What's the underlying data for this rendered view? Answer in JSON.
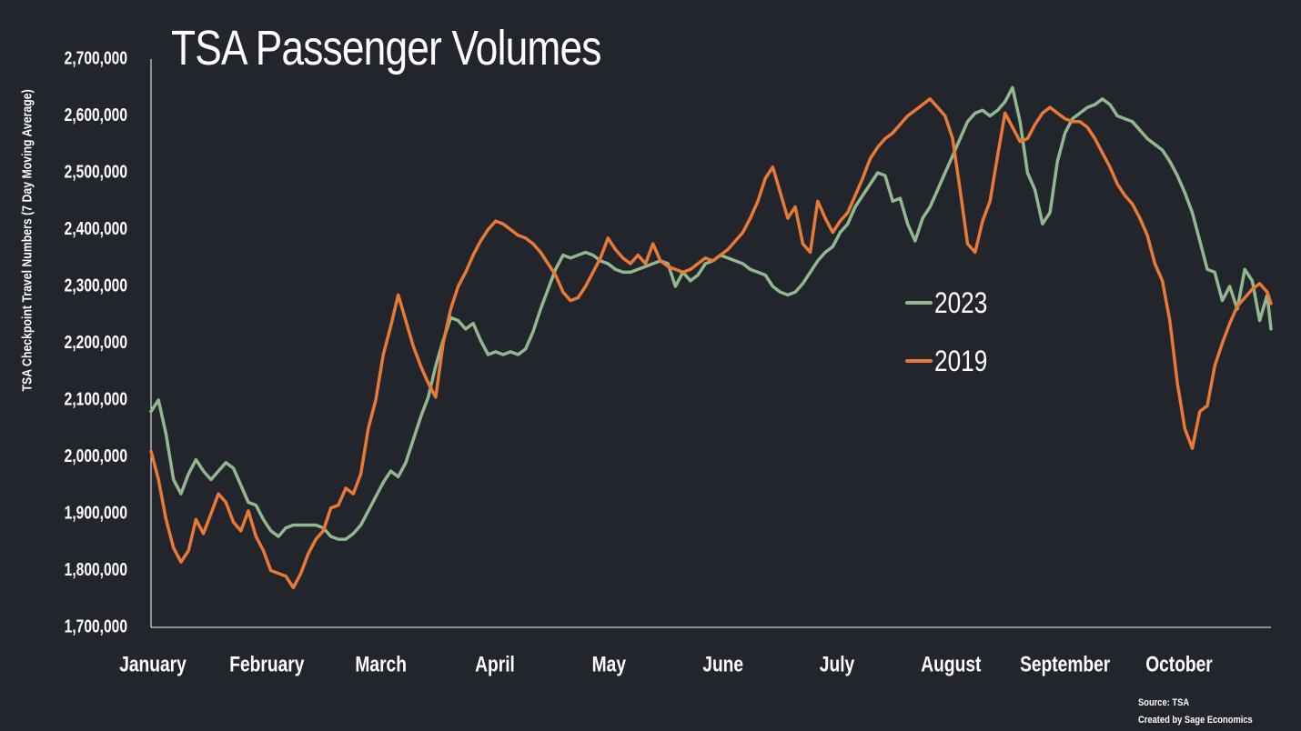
{
  "chart_data": {
    "type": "line",
    "title": "TSA Passenger Volumes",
    "ylabel": "TSA Checkpoint Travel Numbers (7 Day Moving Average)",
    "xlabel": "",
    "ylim": [
      1700000,
      2700000
    ],
    "yticks": [
      "1,700,000",
      "1,800,000",
      "1,900,000",
      "2,000,000",
      "2,100,000",
      "2,200,000",
      "2,300,000",
      "2,400,000",
      "2,500,000",
      "2,600,000",
      "2,700,000"
    ],
    "months": [
      "January",
      "February",
      "March",
      "April",
      "May",
      "June",
      "July",
      "August",
      "September",
      "October"
    ],
    "xlim": [
      1,
      300
    ],
    "grid": false,
    "legend_position": "right",
    "series": [
      {
        "name": "2023",
        "color": "#93b88f",
        "points": [
          [
            1,
            2080000
          ],
          [
            3,
            2100000
          ],
          [
            5,
            2040000
          ],
          [
            7,
            1960000
          ],
          [
            9,
            1935000
          ],
          [
            11,
            1970000
          ],
          [
            13,
            1995000
          ],
          [
            15,
            1975000
          ],
          [
            17,
            1960000
          ],
          [
            19,
            1975000
          ],
          [
            21,
            1990000
          ],
          [
            23,
            1980000
          ],
          [
            25,
            1950000
          ],
          [
            27,
            1920000
          ],
          [
            29,
            1915000
          ],
          [
            31,
            1890000
          ],
          [
            33,
            1870000
          ],
          [
            35,
            1860000
          ],
          [
            37,
            1875000
          ],
          [
            39,
            1880000
          ],
          [
            41,
            1880000
          ],
          [
            43,
            1880000
          ],
          [
            45,
            1880000
          ],
          [
            47,
            1875000
          ],
          [
            49,
            1860000
          ],
          [
            51,
            1855000
          ],
          [
            53,
            1855000
          ],
          [
            55,
            1865000
          ],
          [
            57,
            1880000
          ],
          [
            59,
            1905000
          ],
          [
            61,
            1930000
          ],
          [
            63,
            1955000
          ],
          [
            65,
            1975000
          ],
          [
            67,
            1965000
          ],
          [
            69,
            1990000
          ],
          [
            71,
            2030000
          ],
          [
            73,
            2070000
          ],
          [
            75,
            2105000
          ],
          [
            77,
            2160000
          ],
          [
            79,
            2205000
          ],
          [
            81,
            2245000
          ],
          [
            83,
            2240000
          ],
          [
            85,
            2225000
          ],
          [
            87,
            2235000
          ],
          [
            89,
            2205000
          ],
          [
            91,
            2180000
          ],
          [
            93,
            2185000
          ],
          [
            95,
            2180000
          ],
          [
            97,
            2185000
          ],
          [
            99,
            2180000
          ],
          [
            101,
            2190000
          ],
          [
            103,
            2220000
          ],
          [
            105,
            2260000
          ],
          [
            107,
            2295000
          ],
          [
            109,
            2330000
          ],
          [
            111,
            2355000
          ],
          [
            113,
            2350000
          ],
          [
            115,
            2355000
          ],
          [
            117,
            2360000
          ],
          [
            119,
            2355000
          ],
          [
            121,
            2345000
          ],
          [
            123,
            2340000
          ],
          [
            125,
            2330000
          ],
          [
            127,
            2325000
          ],
          [
            129,
            2325000
          ],
          [
            131,
            2330000
          ],
          [
            133,
            2335000
          ],
          [
            135,
            2340000
          ],
          [
            137,
            2345000
          ],
          [
            139,
            2340000
          ],
          [
            141,
            2300000
          ],
          [
            143,
            2325000
          ],
          [
            145,
            2310000
          ],
          [
            147,
            2320000
          ],
          [
            149,
            2340000
          ],
          [
            151,
            2345000
          ],
          [
            153,
            2355000
          ],
          [
            155,
            2350000
          ],
          [
            157,
            2345000
          ],
          [
            159,
            2340000
          ],
          [
            161,
            2330000
          ],
          [
            163,
            2325000
          ],
          [
            165,
            2320000
          ],
          [
            167,
            2300000
          ],
          [
            169,
            2290000
          ],
          [
            171,
            2285000
          ],
          [
            173,
            2290000
          ],
          [
            175,
            2305000
          ],
          [
            177,
            2325000
          ],
          [
            179,
            2345000
          ],
          [
            181,
            2360000
          ],
          [
            183,
            2370000
          ],
          [
            185,
            2395000
          ],
          [
            187,
            2410000
          ],
          [
            189,
            2440000
          ],
          [
            191,
            2460000
          ],
          [
            193,
            2480000
          ],
          [
            195,
            2500000
          ],
          [
            197,
            2495000
          ],
          [
            199,
            2450000
          ],
          [
            201,
            2455000
          ],
          [
            203,
            2410000
          ],
          [
            205,
            2380000
          ],
          [
            207,
            2420000
          ],
          [
            209,
            2440000
          ],
          [
            211,
            2470000
          ],
          [
            213,
            2500000
          ],
          [
            215,
            2530000
          ],
          [
            217,
            2560000
          ],
          [
            219,
            2590000
          ],
          [
            221,
            2605000
          ],
          [
            223,
            2610000
          ],
          [
            225,
            2600000
          ],
          [
            227,
            2610000
          ],
          [
            229,
            2625000
          ],
          [
            231,
            2650000
          ],
          [
            233,
            2590000
          ],
          [
            235,
            2500000
          ],
          [
            237,
            2470000
          ],
          [
            239,
            2410000
          ],
          [
            241,
            2430000
          ],
          [
            243,
            2520000
          ],
          [
            245,
            2570000
          ],
          [
            247,
            2595000
          ],
          [
            249,
            2605000
          ],
          [
            251,
            2615000
          ],
          [
            253,
            2620000
          ],
          [
            255,
            2630000
          ],
          [
            257,
            2620000
          ],
          [
            259,
            2600000
          ],
          [
            261,
            2595000
          ],
          [
            263,
            2590000
          ],
          [
            265,
            2575000
          ],
          [
            267,
            2560000
          ],
          [
            269,
            2550000
          ],
          [
            271,
            2540000
          ],
          [
            273,
            2520000
          ],
          [
            275,
            2495000
          ],
          [
            277,
            2465000
          ],
          [
            279,
            2430000
          ],
          [
            281,
            2380000
          ],
          [
            283,
            2330000
          ],
          [
            285,
            2325000
          ],
          [
            287,
            2275000
          ],
          [
            289,
            2300000
          ],
          [
            291,
            2260000
          ],
          [
            293,
            2330000
          ],
          [
            295,
            2310000
          ],
          [
            297,
            2240000
          ],
          [
            299,
            2285000
          ],
          [
            300,
            2225000
          ]
        ]
      },
      {
        "name": "2019",
        "color": "#e87a36",
        "points": [
          [
            1,
            2010000
          ],
          [
            3,
            1960000
          ],
          [
            5,
            1890000
          ],
          [
            7,
            1840000
          ],
          [
            9,
            1815000
          ],
          [
            11,
            1835000
          ],
          [
            13,
            1890000
          ],
          [
            15,
            1865000
          ],
          [
            17,
            1900000
          ],
          [
            19,
            1935000
          ],
          [
            21,
            1920000
          ],
          [
            23,
            1885000
          ],
          [
            25,
            1870000
          ],
          [
            27,
            1905000
          ],
          [
            29,
            1860000
          ],
          [
            31,
            1835000
          ],
          [
            33,
            1800000
          ],
          [
            35,
            1795000
          ],
          [
            37,
            1790000
          ],
          [
            39,
            1770000
          ],
          [
            41,
            1795000
          ],
          [
            43,
            1830000
          ],
          [
            45,
            1855000
          ],
          [
            47,
            1870000
          ],
          [
            49,
            1910000
          ],
          [
            51,
            1915000
          ],
          [
            53,
            1945000
          ],
          [
            55,
            1935000
          ],
          [
            57,
            1970000
          ],
          [
            59,
            2050000
          ],
          [
            61,
            2100000
          ],
          [
            63,
            2180000
          ],
          [
            65,
            2230000
          ],
          [
            67,
            2285000
          ],
          [
            69,
            2240000
          ],
          [
            71,
            2195000
          ],
          [
            73,
            2160000
          ],
          [
            75,
            2130000
          ],
          [
            77,
            2105000
          ],
          [
            79,
            2200000
          ],
          [
            81,
            2260000
          ],
          [
            83,
            2300000
          ],
          [
            85,
            2325000
          ],
          [
            87,
            2355000
          ],
          [
            89,
            2380000
          ],
          [
            91,
            2400000
          ],
          [
            93,
            2415000
          ],
          [
            95,
            2410000
          ],
          [
            97,
            2400000
          ],
          [
            99,
            2390000
          ],
          [
            101,
            2385000
          ],
          [
            103,
            2375000
          ],
          [
            105,
            2360000
          ],
          [
            107,
            2340000
          ],
          [
            109,
            2320000
          ],
          [
            111,
            2290000
          ],
          [
            113,
            2275000
          ],
          [
            115,
            2280000
          ],
          [
            117,
            2300000
          ],
          [
            119,
            2325000
          ],
          [
            121,
            2350000
          ],
          [
            123,
            2385000
          ],
          [
            125,
            2365000
          ],
          [
            127,
            2350000
          ],
          [
            129,
            2340000
          ],
          [
            131,
            2355000
          ],
          [
            133,
            2340000
          ],
          [
            135,
            2375000
          ],
          [
            137,
            2345000
          ],
          [
            139,
            2335000
          ],
          [
            141,
            2330000
          ],
          [
            143,
            2325000
          ],
          [
            145,
            2330000
          ],
          [
            147,
            2340000
          ],
          [
            149,
            2350000
          ],
          [
            151,
            2345000
          ],
          [
            153,
            2355000
          ],
          [
            155,
            2365000
          ],
          [
            157,
            2380000
          ],
          [
            159,
            2395000
          ],
          [
            161,
            2420000
          ],
          [
            163,
            2450000
          ],
          [
            165,
            2490000
          ],
          [
            167,
            2510000
          ],
          [
            169,
            2465000
          ],
          [
            171,
            2420000
          ],
          [
            173,
            2440000
          ],
          [
            175,
            2375000
          ],
          [
            177,
            2360000
          ],
          [
            179,
            2450000
          ],
          [
            181,
            2420000
          ],
          [
            183,
            2395000
          ],
          [
            185,
            2415000
          ],
          [
            187,
            2430000
          ],
          [
            189,
            2460000
          ],
          [
            191,
            2490000
          ],
          [
            193,
            2525000
          ],
          [
            195,
            2545000
          ],
          [
            197,
            2560000
          ],
          [
            199,
            2570000
          ],
          [
            201,
            2585000
          ],
          [
            203,
            2600000
          ],
          [
            205,
            2610000
          ],
          [
            207,
            2620000
          ],
          [
            209,
            2630000
          ],
          [
            211,
            2615000
          ],
          [
            213,
            2600000
          ],
          [
            215,
            2560000
          ],
          [
            217,
            2470000
          ],
          [
            219,
            2375000
          ],
          [
            221,
            2360000
          ],
          [
            223,
            2415000
          ],
          [
            225,
            2450000
          ],
          [
            227,
            2530000
          ],
          [
            229,
            2605000
          ],
          [
            231,
            2580000
          ],
          [
            233,
            2555000
          ],
          [
            235,
            2560000
          ],
          [
            237,
            2585000
          ],
          [
            239,
            2605000
          ],
          [
            241,
            2615000
          ],
          [
            243,
            2605000
          ],
          [
            245,
            2595000
          ],
          [
            247,
            2590000
          ],
          [
            249,
            2590000
          ],
          [
            251,
            2580000
          ],
          [
            253,
            2560000
          ],
          [
            255,
            2535000
          ],
          [
            257,
            2510000
          ],
          [
            259,
            2480000
          ],
          [
            261,
            2460000
          ],
          [
            263,
            2445000
          ],
          [
            265,
            2420000
          ],
          [
            267,
            2390000
          ],
          [
            269,
            2340000
          ],
          [
            271,
            2310000
          ],
          [
            273,
            2240000
          ],
          [
            275,
            2130000
          ],
          [
            277,
            2050000
          ],
          [
            279,
            2015000
          ],
          [
            281,
            2080000
          ],
          [
            283,
            2090000
          ],
          [
            285,
            2160000
          ],
          [
            287,
            2200000
          ],
          [
            289,
            2235000
          ],
          [
            291,
            2265000
          ],
          [
            293,
            2280000
          ],
          [
            295,
            2295000
          ],
          [
            297,
            2305000
          ],
          [
            299,
            2290000
          ],
          [
            300,
            2270000
          ]
        ]
      }
    ],
    "source": [
      "Source: TSA",
      "Created by Sage Economics"
    ]
  }
}
